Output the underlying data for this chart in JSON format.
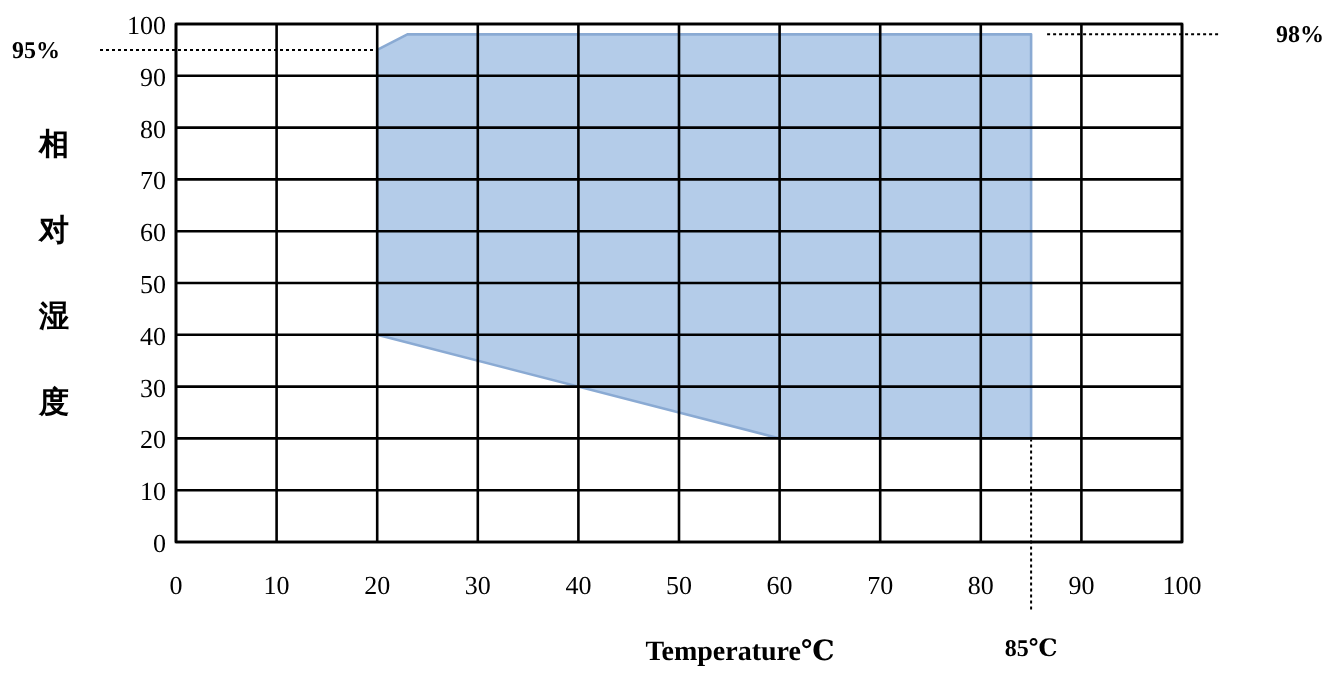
{
  "chart_data": {
    "type": "area",
    "xlabel": "Temperature℃",
    "ylabel": "相对湿度",
    "series": [
      {
        "color": "#b4cce9",
        "x": [
          20,
          20,
          23,
          85,
          85,
          60
        ],
        "values": [
          40,
          95,
          98,
          98,
          20,
          20
        ]
      }
    ],
    "xlim": [
      0,
      100
    ],
    "ylim": [
      0,
      100
    ],
    "xticks": [
      0,
      10,
      20,
      30,
      40,
      50,
      60,
      70,
      80,
      90,
      100
    ],
    "yticks": [
      0,
      10,
      20,
      30,
      40,
      50,
      60,
      70,
      80,
      90,
      100
    ],
    "grid": true,
    "ref_lines": [
      {
        "axis": "y",
        "value": 95,
        "label": "95%",
        "line_style": "dotted"
      },
      {
        "axis": "y",
        "value": 98,
        "label": "98%",
        "line_style": "dotted"
      },
      {
        "axis": "x",
        "value": 85,
        "label": "85℃",
        "line_style": "dotted"
      }
    ]
  }
}
